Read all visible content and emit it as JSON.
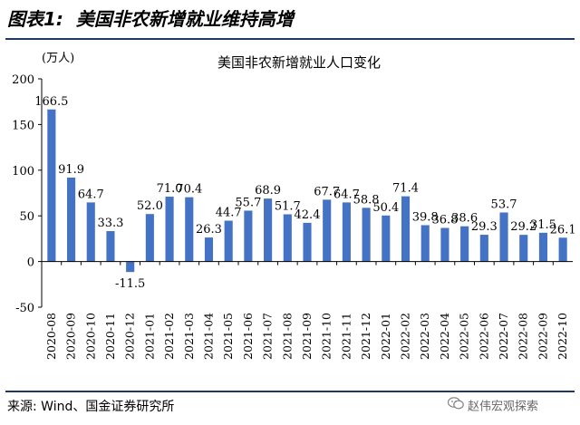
{
  "figure": {
    "label": "图表1:",
    "title": "美国非农新增就业维持高增"
  },
  "chart_data": {
    "type": "bar",
    "title": "美国非农新增就业人口变化",
    "ylabel": "(万人)",
    "xlabel": "",
    "ylim": [
      -50,
      200
    ],
    "yticks": [
      -50,
      0,
      50,
      100,
      150,
      200
    ],
    "grid": false,
    "bar_color": "#4472c4",
    "categories": [
      "2020-08",
      "2020-09",
      "2020-10",
      "2020-11",
      "2020-12",
      "2021-01",
      "2021-02",
      "2021-03",
      "2021-04",
      "2021-05",
      "2021-06",
      "2021-07",
      "2021-08",
      "2021-09",
      "2021-10",
      "2021-11",
      "2021-12",
      "2022-01",
      "2022-02",
      "2022-03",
      "2022-04",
      "2022-05",
      "2022-06",
      "2022-07",
      "2022-08",
      "2022-09",
      "2022-10"
    ],
    "values": [
      166.5,
      91.9,
      64.7,
      33.3,
      -11.5,
      52.0,
      71.0,
      70.4,
      26.3,
      44.7,
      55.7,
      68.9,
      51.7,
      42.4,
      67.7,
      64.7,
      58.8,
      50.4,
      71.4,
      39.8,
      36.8,
      38.6,
      29.3,
      53.7,
      29.2,
      31.5,
      26.1
    ],
    "value_labels": [
      "166.5",
      "91.9",
      "64.7",
      "33.3",
      "-11.5",
      "52.0",
      "71.0",
      "70.4",
      "26.3",
      "44.7",
      "55.7",
      "68.9",
      "51.7",
      "42.4",
      "67.7",
      "64.7",
      "58.8",
      "50.4",
      "71.4",
      "39.8",
      "36.8",
      "38.6",
      "29.3",
      "53.7",
      "29.2",
      "31.5",
      "26.1"
    ]
  },
  "footer": {
    "source": "来源: Wind、国金证券研究所",
    "watermark": "赵伟宏观探索"
  }
}
